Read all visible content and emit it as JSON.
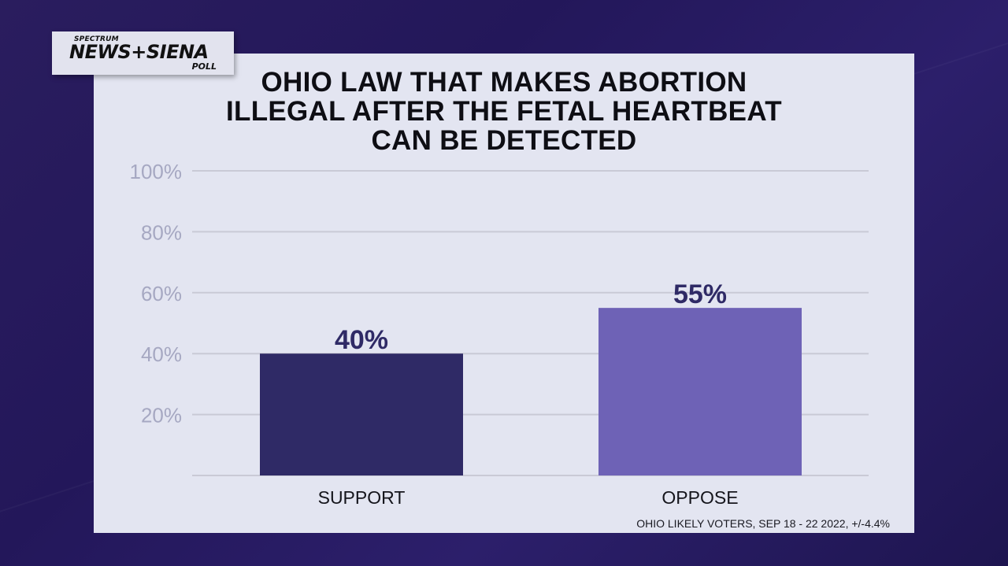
{
  "logo": {
    "top": "SPECTRUM",
    "main": "NEWS+SIENA",
    "bottom": "POLL"
  },
  "footnote": "OHIO LIKELY VOTERS, SEP 18 - 22 2022, +/-4.4%",
  "colors": {
    "support": "#2f2a66",
    "oppose": "#6e62b6",
    "label": "#2f2a66",
    "tick": "#a6a8c2",
    "grid": "#c9cad6"
  },
  "chart_data": {
    "type": "bar",
    "title": "OHIO LAW THAT MAKES ABORTION ILLEGAL AFTER THE FETAL HEARTBEAT CAN BE DETECTED",
    "title_lines": [
      "OHIO LAW THAT MAKES ABORTION",
      "ILLEGAL AFTER THE FETAL HEARTBEAT",
      "CAN BE DETECTED"
    ],
    "categories": [
      "SUPPORT",
      "OPPOSE"
    ],
    "values": [
      40,
      55
    ],
    "data_labels": [
      "40%",
      "55%"
    ],
    "yticks": [
      20,
      40,
      60,
      80,
      100
    ],
    "ytick_labels": [
      "20%",
      "40%",
      "60%",
      "80%",
      "100%"
    ],
    "ylim": [
      0,
      100
    ],
    "xlabel": "",
    "ylabel": "",
    "grid": true,
    "legend": "none"
  }
}
